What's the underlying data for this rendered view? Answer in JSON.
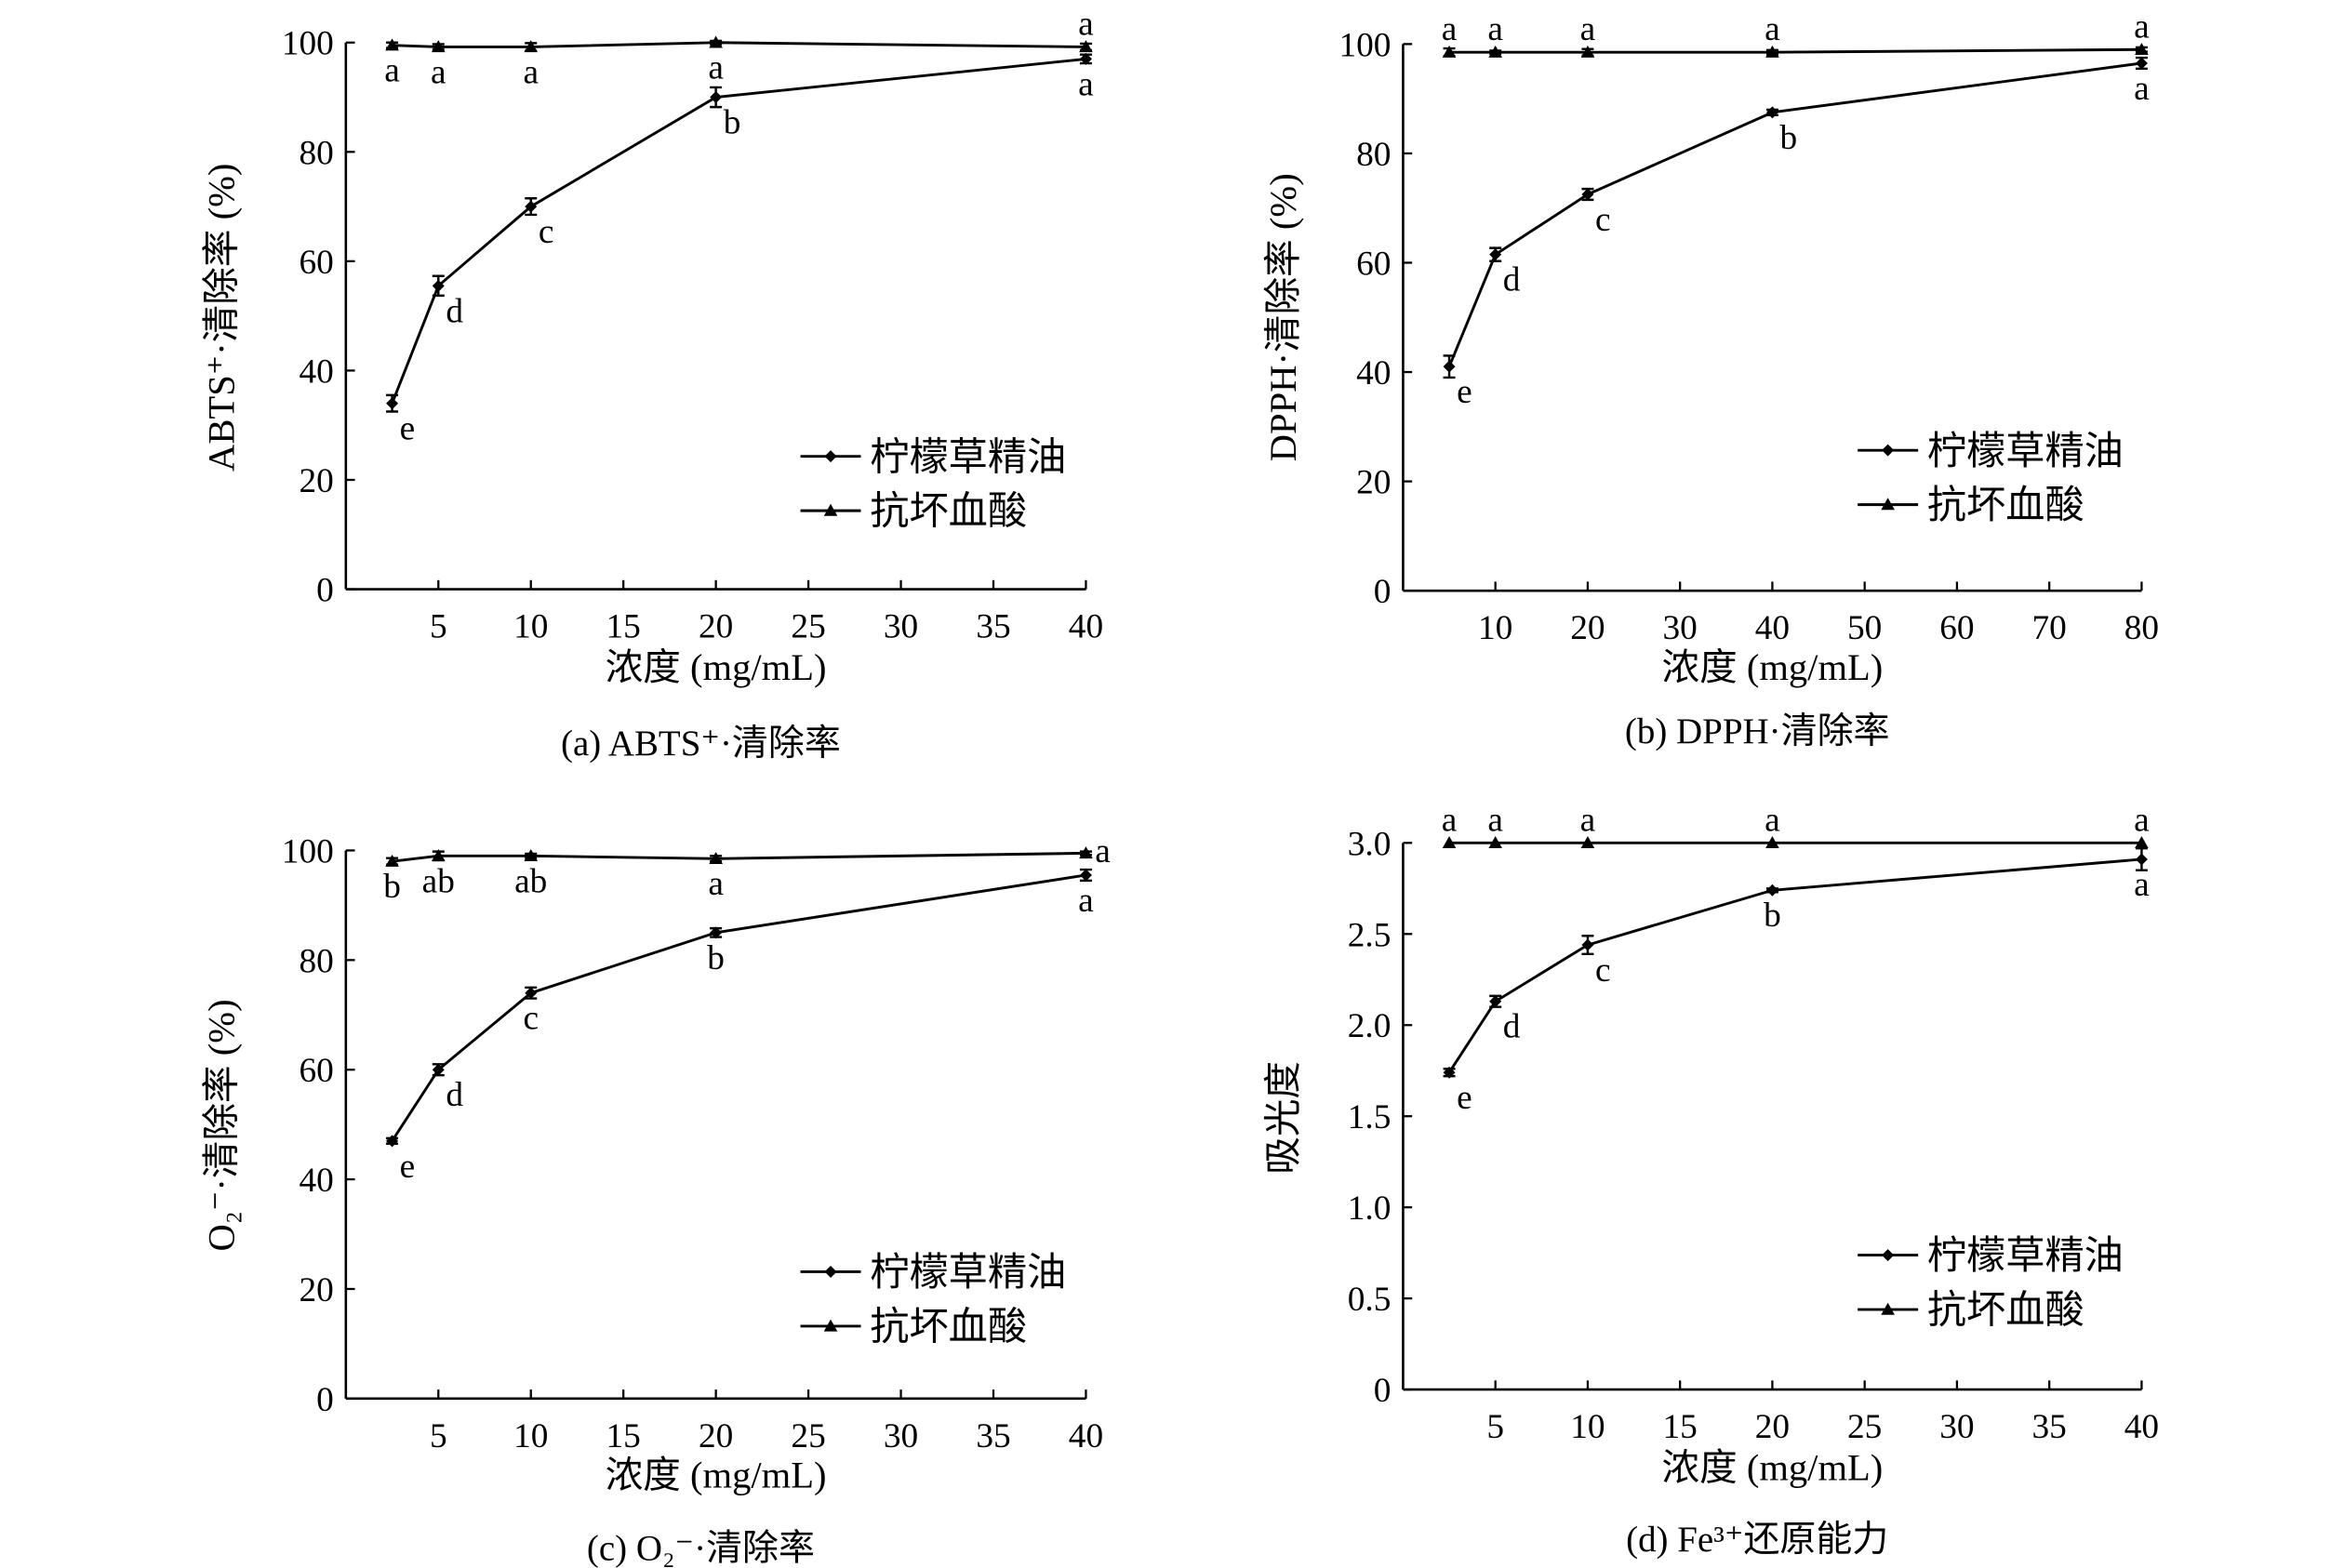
{
  "legend": [
    "柠檬草精油",
    "抗坏血酸"
  ],
  "chart_data": [
    {
      "type": "line",
      "caption": "(a) ABTS⁺·清除率",
      "xlabel": "浓度 (mg/mL)",
      "ylabel": "ABTS⁺·清除率 (%)",
      "xlim": [
        0,
        40
      ],
      "ylim": [
        0,
        100
      ],
      "xticks": [
        5,
        10,
        15,
        20,
        25,
        30,
        35,
        40
      ],
      "yticks": [
        "0",
        "20",
        "40",
        "60",
        "80",
        "100"
      ],
      "x": [
        2.5,
        5,
        10,
        20,
        40
      ],
      "legend_position": "center-right",
      "series": [
        {
          "name": "柠檬草精油",
          "marker": "diamond",
          "values": [
            34,
            55.5,
            70,
            90,
            97
          ],
          "error": [
            1.5,
            1.8,
            1.5,
            1.8,
            0.8
          ],
          "labels": [
            "e",
            "d",
            "c",
            "b",
            "a"
          ],
          "label_pos": [
            "right",
            "right",
            "right",
            "right",
            "below"
          ]
        },
        {
          "name": "抗坏血酸",
          "marker": "triangle",
          "values": [
            99.5,
            99.2,
            99.2,
            100,
            99.2
          ],
          "error": [
            0.5,
            0.5,
            0.7,
            0.3,
            0.6
          ],
          "labels": [
            "a",
            "a",
            "a",
            "a",
            "a"
          ],
          "label_pos": [
            "below",
            "below",
            "below",
            "below",
            "above"
          ]
        }
      ]
    },
    {
      "type": "line",
      "caption": "(b) DPPH·清除率",
      "xlabel": "浓度 (mg/mL)",
      "ylabel": "DPPH·清除率 (%)",
      "xlim": [
        0,
        80
      ],
      "ylim": [
        0,
        100
      ],
      "xticks": [
        10,
        20,
        30,
        40,
        50,
        60,
        70,
        80
      ],
      "yticks": [
        "0",
        "20",
        "40",
        "60",
        "80",
        "100"
      ],
      "x": [
        5,
        10,
        20,
        40,
        80
      ],
      "legend_position": "center-right",
      "series": [
        {
          "name": "柠檬草精油",
          "marker": "diamond",
          "values": [
            41,
            61.5,
            72.5,
            87.5,
            96.5
          ],
          "error": [
            2,
            1.2,
            1,
            0.5,
            1
          ],
          "labels": [
            "e",
            "d",
            "c",
            "b",
            "a"
          ],
          "label_pos": [
            "right",
            "right",
            "right",
            "right",
            "below"
          ]
        },
        {
          "name": "抗坏血酸",
          "marker": "triangle",
          "values": [
            98.5,
            98.5,
            98.5,
            98.5,
            99
          ],
          "error": [
            0.7,
            0.3,
            0.6,
            0.4,
            0.4
          ],
          "labels": [
            "a",
            "a",
            "a",
            "a",
            "a"
          ],
          "label_pos": [
            "above",
            "above",
            "above",
            "above",
            "above"
          ]
        }
      ]
    },
    {
      "type": "line",
      "caption": "(c) O₂⁻·清除率",
      "xlabel": "浓度 (mg/mL)",
      "ylabel": "O₂⁻·清除率 (%)",
      "xlim": [
        0,
        40
      ],
      "ylim": [
        0,
        100
      ],
      "xticks": [
        5,
        10,
        15,
        20,
        25,
        30,
        35,
        40
      ],
      "yticks": [
        "0",
        "20",
        "40",
        "60",
        "80",
        "100"
      ],
      "x": [
        2.5,
        5,
        10,
        20,
        40
      ],
      "legend_position": "center-right",
      "series": [
        {
          "name": "柠檬草精油",
          "marker": "diamond",
          "values": [
            47,
            60,
            74,
            85,
            95.5
          ],
          "error": [
            0.5,
            1,
            1,
            0.8,
            1
          ],
          "labels": [
            "e",
            "d",
            "c",
            "b",
            "a"
          ],
          "label_pos": [
            "right",
            "right",
            "below",
            "below",
            "below"
          ]
        },
        {
          "name": "抗坏血酸",
          "marker": "triangle",
          "values": [
            98,
            99,
            99,
            98.5,
            99.5
          ],
          "error": [
            0.6,
            0.8,
            0.4,
            0.5,
            0.3
          ],
          "labels": [
            "b",
            "ab",
            "ab",
            "a",
            "a"
          ],
          "label_pos": [
            "below",
            "below",
            "below",
            "below",
            "right"
          ]
        }
      ]
    },
    {
      "type": "line",
      "caption": "(d) Fe³⁺还原能力",
      "xlabel": "浓度 (mg/mL)",
      "ylabel": "吸光度",
      "xlim": [
        0,
        40
      ],
      "ylim": [
        0,
        3
      ],
      "xticks": [
        5,
        10,
        15,
        20,
        25,
        30,
        35,
        40
      ],
      "yticks": [
        "0",
        "0.5",
        "1.0",
        "1.5",
        "2.0",
        "2.5",
        "3.0"
      ],
      "x": [
        2.5,
        5,
        10,
        20,
        40
      ],
      "legend_position": "center-right",
      "series": [
        {
          "name": "柠檬草精油",
          "marker": "diamond",
          "values": [
            1.74,
            2.13,
            2.44,
            2.74,
            2.91
          ],
          "error": [
            0.02,
            0.03,
            0.05,
            0.01,
            0.06
          ],
          "labels": [
            "e",
            "d",
            "c",
            "b",
            "a"
          ],
          "label_pos": [
            "right",
            "right",
            "right",
            "below",
            "below"
          ]
        },
        {
          "name": "抗坏血酸",
          "marker": "triangle",
          "values": [
            3.0,
            3.0,
            3.0,
            3.0,
            3.0
          ],
          "error": [
            0,
            0,
            0,
            0,
            0
          ],
          "labels": [
            "a",
            "a",
            "a",
            "a",
            "a"
          ],
          "label_pos": [
            "above",
            "above",
            "above",
            "above",
            "above"
          ]
        }
      ]
    }
  ]
}
